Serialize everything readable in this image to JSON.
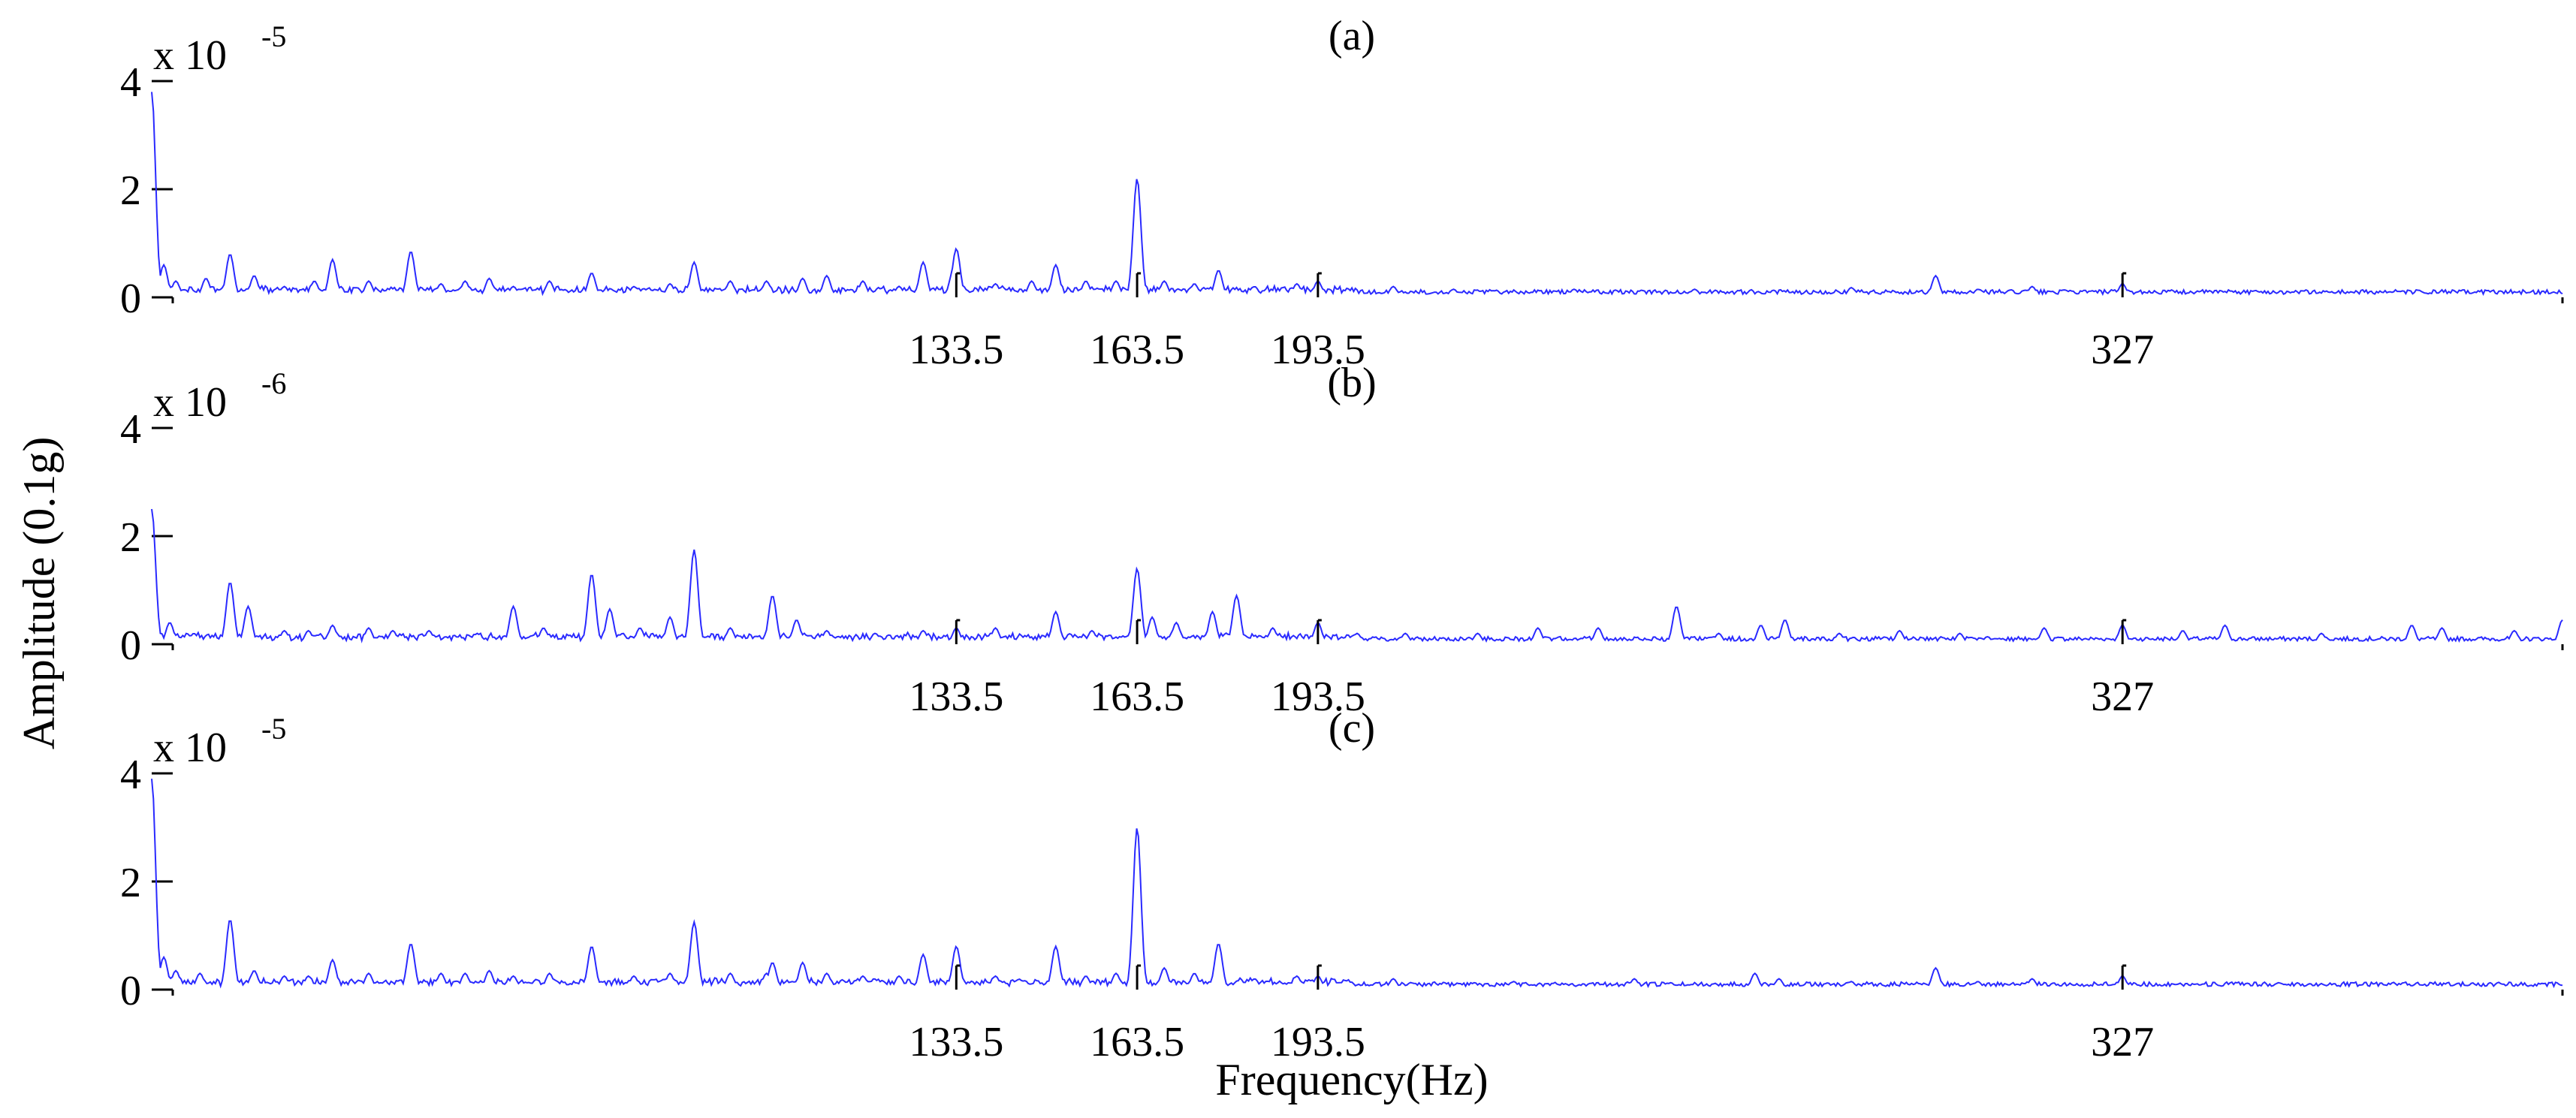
{
  "figure": {
    "ylabel": "Amplitude (0.1g)",
    "xlabel": "Frequency(Hz)",
    "line_color": "#2a2aff",
    "axis_color": "#000000"
  },
  "chart_data": [
    {
      "type": "line",
      "title": "(a)",
      "scale_label": "x 10",
      "scale_exponent": "-5",
      "xlim": [
        0,
        400
      ],
      "ylim": [
        0,
        4
      ],
      "yticks": [
        "0",
        "2",
        "4"
      ],
      "xticks": [
        "133.5",
        "163.5",
        "193.5",
        "327"
      ],
      "xtick_values": [
        133.5,
        163.5,
        193.5,
        327
      ],
      "peaks": [
        [
          0,
          3.8
        ],
        [
          2,
          0.6
        ],
        [
          4,
          0.3
        ],
        [
          9,
          0.35
        ],
        [
          13,
          0.8
        ],
        [
          17,
          0.4
        ],
        [
          22,
          0.2
        ],
        [
          27,
          0.3
        ],
        [
          30,
          0.7
        ],
        [
          36,
          0.3
        ],
        [
          43,
          0.85
        ],
        [
          48,
          0.25
        ],
        [
          52,
          0.3
        ],
        [
          56,
          0.35
        ],
        [
          60,
          0.2
        ],
        [
          66,
          0.3
        ],
        [
          73,
          0.45
        ],
        [
          80,
          0.2
        ],
        [
          86,
          0.25
        ],
        [
          90,
          0.65
        ],
        [
          96,
          0.3
        ],
        [
          102,
          0.3
        ],
        [
          108,
          0.35
        ],
        [
          112,
          0.4
        ],
        [
          118,
          0.3
        ],
        [
          124,
          0.2
        ],
        [
          128,
          0.65
        ],
        [
          133,
          0.5
        ],
        [
          133.5,
          0.9
        ],
        [
          140,
          0.25
        ],
        [
          146,
          0.3
        ],
        [
          150,
          0.6
        ],
        [
          155,
          0.3
        ],
        [
          160,
          0.3
        ],
        [
          163.5,
          2.2
        ],
        [
          168,
          0.3
        ],
        [
          173,
          0.25
        ],
        [
          177,
          0.5
        ],
        [
          183,
          0.2
        ],
        [
          190,
          0.25
        ],
        [
          193.5,
          0.3
        ],
        [
          206,
          0.2
        ],
        [
          216,
          0.15
        ],
        [
          236,
          0.15
        ],
        [
          256,
          0.15
        ],
        [
          282,
          0.18
        ],
        [
          296,
          0.4
        ],
        [
          303,
          0.15
        ],
        [
          312,
          0.2
        ],
        [
          327,
          0.25
        ],
        [
          345,
          0.12
        ],
        [
          372,
          0.1
        ],
        [
          388,
          0.1
        ],
        [
          400,
          0.05
        ]
      ]
    },
    {
      "type": "line",
      "title": "(b)",
      "scale_label": "x 10",
      "scale_exponent": "-6",
      "xlim": [
        0,
        400
      ],
      "ylim": [
        0,
        4
      ],
      "yticks": [
        "0",
        "2",
        "4"
      ],
      "xticks": [
        "133.5",
        "163.5",
        "193.5",
        "327"
      ],
      "xtick_values": [
        133.5,
        163.5,
        193.5,
        327
      ],
      "peaks": [
        [
          0,
          2.5
        ],
        [
          3,
          0.4
        ],
        [
          7,
          0.2
        ],
        [
          13,
          1.15
        ],
        [
          16,
          0.7
        ],
        [
          22,
          0.25
        ],
        [
          26,
          0.25
        ],
        [
          30,
          0.35
        ],
        [
          36,
          0.3
        ],
        [
          40,
          0.25
        ],
        [
          46,
          0.25
        ],
        [
          54,
          0.2
        ],
        [
          60,
          0.7
        ],
        [
          65,
          0.3
        ],
        [
          73,
          1.3
        ],
        [
          76,
          0.65
        ],
        [
          81,
          0.3
        ],
        [
          86,
          0.5
        ],
        [
          90,
          1.75
        ],
        [
          96,
          0.3
        ],
        [
          103,
          0.9
        ],
        [
          107,
          0.45
        ],
        [
          112,
          0.25
        ],
        [
          120,
          0.2
        ],
        [
          128,
          0.25
        ],
        [
          133.5,
          0.3
        ],
        [
          140,
          0.3
        ],
        [
          150,
          0.6
        ],
        [
          156,
          0.25
        ],
        [
          163.5,
          1.4
        ],
        [
          166,
          0.5
        ],
        [
          170,
          0.4
        ],
        [
          176,
          0.6
        ],
        [
          180,
          0.9
        ],
        [
          186,
          0.3
        ],
        [
          193.5,
          0.4
        ],
        [
          200,
          0.2
        ],
        [
          208,
          0.2
        ],
        [
          220,
          0.2
        ],
        [
          230,
          0.3
        ],
        [
          240,
          0.3
        ],
        [
          253,
          0.7
        ],
        [
          260,
          0.2
        ],
        [
          267,
          0.35
        ],
        [
          271,
          0.45
        ],
        [
          280,
          0.2
        ],
        [
          290,
          0.25
        ],
        [
          300,
          0.2
        ],
        [
          314,
          0.3
        ],
        [
          327,
          0.35
        ],
        [
          337,
          0.25
        ],
        [
          344,
          0.35
        ],
        [
          360,
          0.2
        ],
        [
          375,
          0.35
        ],
        [
          380,
          0.3
        ],
        [
          392,
          0.25
        ],
        [
          400,
          0.45
        ]
      ]
    },
    {
      "type": "line",
      "title": "(c)",
      "scale_label": "x 10",
      "scale_exponent": "-5",
      "xlim": [
        0,
        400
      ],
      "ylim": [
        0,
        4
      ],
      "yticks": [
        "0",
        "2",
        "4"
      ],
      "xticks": [
        "133.5",
        "163.5",
        "193.5",
        "327"
      ],
      "xtick_values": [
        133.5,
        163.5,
        193.5,
        327
      ],
      "peaks": [
        [
          0,
          3.9
        ],
        [
          2,
          0.6
        ],
        [
          4,
          0.35
        ],
        [
          8,
          0.3
        ],
        [
          13,
          1.3
        ],
        [
          17,
          0.35
        ],
        [
          22,
          0.25
        ],
        [
          26,
          0.25
        ],
        [
          30,
          0.55
        ],
        [
          36,
          0.3
        ],
        [
          43,
          0.85
        ],
        [
          48,
          0.3
        ],
        [
          52,
          0.3
        ],
        [
          56,
          0.35
        ],
        [
          60,
          0.25
        ],
        [
          66,
          0.3
        ],
        [
          73,
          0.8
        ],
        [
          80,
          0.25
        ],
        [
          86,
          0.3
        ],
        [
          90,
          1.25
        ],
        [
          96,
          0.3
        ],
        [
          102,
          0.3
        ],
        [
          103,
          0.5
        ],
        [
          108,
          0.5
        ],
        [
          112,
          0.3
        ],
        [
          118,
          0.25
        ],
        [
          124,
          0.25
        ],
        [
          128,
          0.65
        ],
        [
          133.5,
          0.8
        ],
        [
          140,
          0.25
        ],
        [
          150,
          0.8
        ],
        [
          155,
          0.25
        ],
        [
          160,
          0.3
        ],
        [
          163.5,
          3.0
        ],
        [
          168,
          0.4
        ],
        [
          173,
          0.3
        ],
        [
          177,
          0.85
        ],
        [
          183,
          0.2
        ],
        [
          190,
          0.25
        ],
        [
          193.5,
          0.25
        ],
        [
          206,
          0.2
        ],
        [
          226,
          0.15
        ],
        [
          246,
          0.2
        ],
        [
          266,
          0.3
        ],
        [
          270,
          0.2
        ],
        [
          282,
          0.15
        ],
        [
          296,
          0.4
        ],
        [
          303,
          0.15
        ],
        [
          312,
          0.2
        ],
        [
          327,
          0.25
        ],
        [
          345,
          0.12
        ],
        [
          372,
          0.12
        ],
        [
          390,
          0.1
        ],
        [
          400,
          0.08
        ]
      ]
    }
  ]
}
